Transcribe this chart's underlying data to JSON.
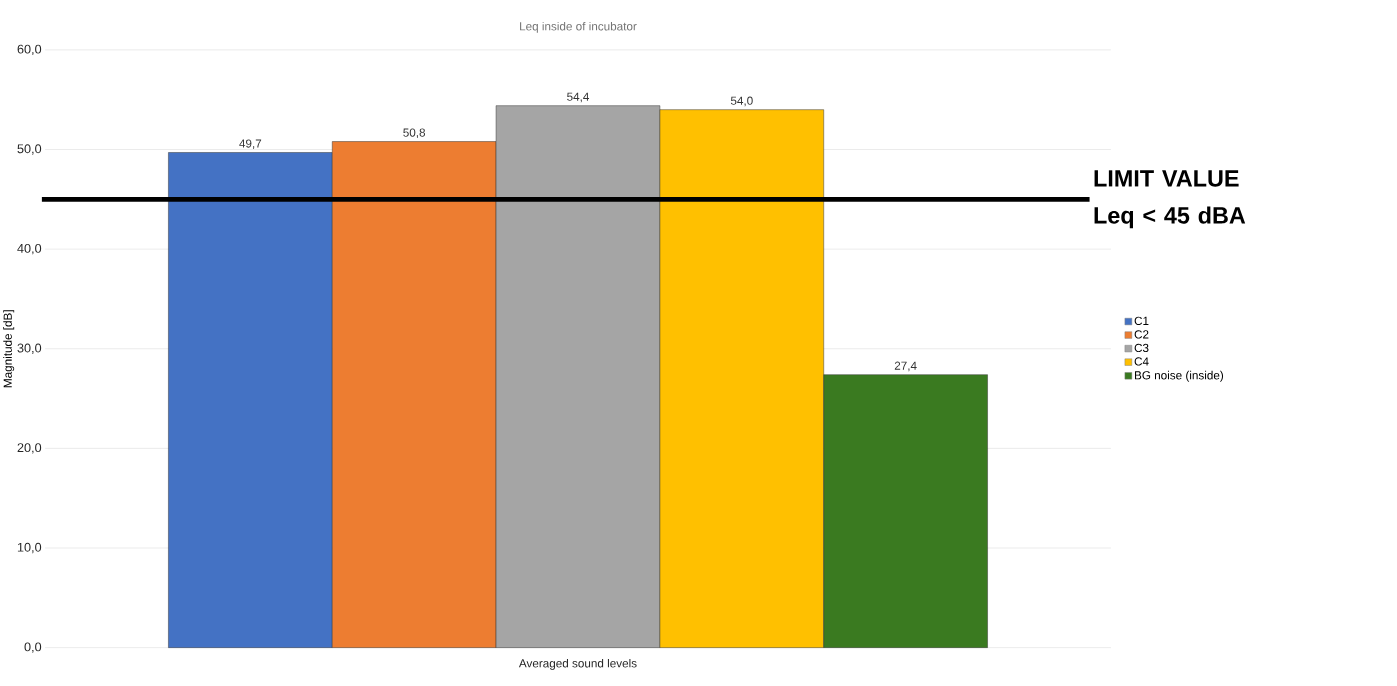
{
  "chart_data": {
    "type": "bar",
    "title": "Leq inside of incubator",
    "ylabel": "Magnitude [dB]",
    "categories": [
      "Averaged sound levels"
    ],
    "series": [
      {
        "name": "C1",
        "color": "#4472c4",
        "values": [
          49.7
        ],
        "value_labels": [
          "49,7"
        ]
      },
      {
        "name": "C2",
        "color": "#ed7d31",
        "values": [
          50.8
        ],
        "value_labels": [
          "50,8"
        ]
      },
      {
        "name": "C3",
        "color": "#a5a5a5",
        "values": [
          54.4
        ],
        "value_labels": [
          "54,4"
        ]
      },
      {
        "name": "C4",
        "color": "#ffc000",
        "values": [
          54.0
        ],
        "value_labels": [
          "54,0"
        ]
      },
      {
        "name": "BG noise (inside)",
        "color": "#3a7a20",
        "values": [
          27.4
        ],
        "value_labels": [
          "27,4"
        ]
      }
    ],
    "ylim": [
      0,
      60
    ],
    "yticks": [
      {
        "value": 0,
        "label": "0,0"
      },
      {
        "value": 10,
        "label": "10,0"
      },
      {
        "value": 20,
        "label": "20,0"
      },
      {
        "value": 30,
        "label": "30,0"
      },
      {
        "value": 40,
        "label": "40,0"
      },
      {
        "value": 50,
        "label": "50,0"
      },
      {
        "value": 60,
        "label": "60,0"
      }
    ],
    "ref_lines": [
      {
        "axis": "y",
        "value": 45,
        "label": "LIMIT VALUE Leq < 45 dBA",
        "color": "#000000"
      }
    ],
    "grid": "y",
    "legend": "right"
  }
}
